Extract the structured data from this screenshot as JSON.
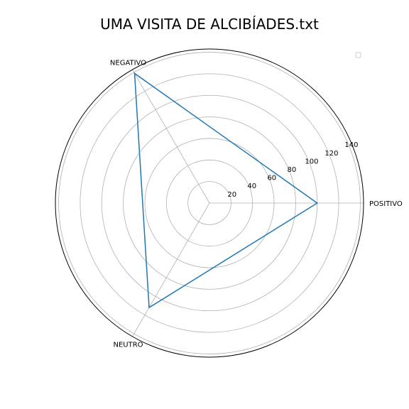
{
  "chart_data": {
    "type": "radar",
    "title": "UMA VISITA DE ALCIBÍADES.txt",
    "categories": [
      "POSITIVO",
      "NEGATIVO",
      "NEUTRO"
    ],
    "series": [
      {
        "values": [
          100,
          139,
          112
        ],
        "color": "#1f77b4"
      }
    ],
    "r_ticks": [
      20,
      40,
      60,
      80,
      100,
      120,
      140
    ],
    "r_range": [
      0,
      143
    ],
    "grid": true,
    "legend": "top-right",
    "legend_entries": []
  }
}
